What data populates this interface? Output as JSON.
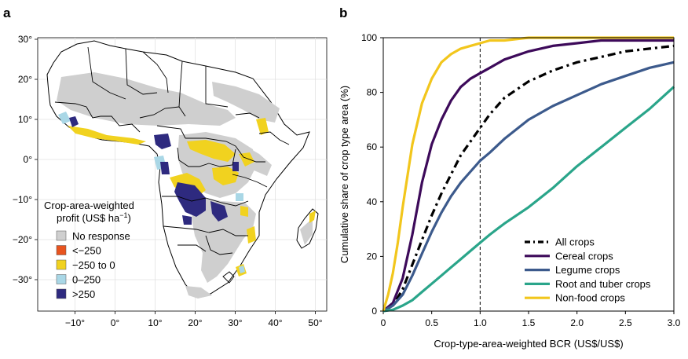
{
  "panel_a": {
    "label": "a",
    "x_ticks": [
      "−10°",
      "0°",
      "10°",
      "20°",
      "30°",
      "40°",
      "50°"
    ],
    "y_ticks": [
      "30°",
      "20°",
      "10°",
      "0°",
      "−10°",
      "−20°",
      "−30°"
    ],
    "legend_title_1": "Crop-area-weighted",
    "legend_title_2": "profit (US$ ha",
    "legend_title_sup": "−1",
    "legend_title_end": ")",
    "legend": [
      {
        "label": "No response",
        "color": "#cfcfcf"
      },
      {
        "label": "<−250",
        "color": "#e8541f"
      },
      {
        "label": "−250 to 0",
        "color": "#f1d21f"
      },
      {
        "label": "0–250",
        "color": "#a9d7e6"
      },
      {
        "label": ">250",
        "color": "#2e2a7f"
      }
    ]
  },
  "chart_data": {
    "type": "line",
    "label": "b",
    "xlabel": "Crop-type-area-weighted BCR (US$/US$)",
    "ylabel": "Cumulative share of crop type area (%)",
    "xlim": [
      0,
      3.0
    ],
    "ylim": [
      0,
      100
    ],
    "x_ticks": [
      "0",
      "0.5",
      "1.0",
      "1.5",
      "2.0",
      "2.5",
      "3.0"
    ],
    "y_ticks": [
      "0",
      "20",
      "40",
      "60",
      "80",
      "100"
    ],
    "reference_line_x": 1.0,
    "legend_position": "bottom-right",
    "series": [
      {
        "name": "All crops",
        "color": "#000000",
        "dash": "dashdot",
        "x": [
          0,
          0.1,
          0.2,
          0.3,
          0.4,
          0.5,
          0.6,
          0.7,
          0.8,
          0.9,
          1.0,
          1.1,
          1.25,
          1.5,
          1.75,
          2.0,
          2.25,
          2.5,
          2.75,
          3.0
        ],
        "y": [
          0,
          2,
          8,
          17,
          26,
          35,
          43,
          50,
          57,
          62,
          67,
          72,
          78,
          84,
          88,
          91,
          93,
          95,
          96,
          97
        ]
      },
      {
        "name": "Cereal crops",
        "color": "#3d0a5a",
        "dash": "solid",
        "x": [
          0,
          0.1,
          0.2,
          0.3,
          0.4,
          0.5,
          0.6,
          0.7,
          0.8,
          0.9,
          1.0,
          1.1,
          1.25,
          1.5,
          1.75,
          2.0,
          2.25,
          2.5,
          2.75,
          3.0
        ],
        "y": [
          0,
          3,
          12,
          28,
          47,
          61,
          70,
          77,
          82,
          85,
          87,
          89,
          92,
          95,
          97,
          98,
          99,
          99,
          99,
          99
        ]
      },
      {
        "name": "Legume crops",
        "color": "#3c5a8c",
        "dash": "solid",
        "x": [
          0,
          0.1,
          0.2,
          0.3,
          0.4,
          0.5,
          0.6,
          0.7,
          0.8,
          0.9,
          1.0,
          1.1,
          1.25,
          1.5,
          1.75,
          2.0,
          2.25,
          2.5,
          2.75,
          3.0
        ],
        "y": [
          0,
          2,
          6,
          13,
          21,
          29,
          36,
          42,
          47,
          51,
          55,
          58,
          63,
          70,
          75,
          79,
          83,
          86,
          89,
          91
        ]
      },
      {
        "name": "Root and tuber crops",
        "color": "#2aa58a",
        "dash": "solid",
        "x": [
          0,
          0.1,
          0.2,
          0.3,
          0.4,
          0.5,
          0.6,
          0.7,
          0.8,
          0.9,
          1.0,
          1.1,
          1.25,
          1.5,
          1.75,
          2.0,
          2.25,
          2.5,
          2.75,
          3.0
        ],
        "y": [
          0,
          0.5,
          2,
          4,
          7,
          10,
          13,
          16,
          19,
          22,
          25,
          28,
          32,
          38,
          45,
          53,
          60,
          67,
          74,
          82
        ]
      },
      {
        "name": "Non-food crops",
        "color": "#f2c61c",
        "dash": "solid",
        "x": [
          0,
          0.05,
          0.1,
          0.15,
          0.2,
          0.3,
          0.4,
          0.5,
          0.6,
          0.7,
          0.8,
          0.9,
          1.0,
          1.1,
          1.25,
          1.5,
          1.75,
          2.0,
          2.5,
          3.0
        ],
        "y": [
          0,
          6,
          14,
          25,
          38,
          61,
          76,
          85,
          91,
          94,
          96,
          97,
          98,
          99,
          99,
          100,
          100,
          100,
          100,
          100
        ]
      }
    ]
  }
}
